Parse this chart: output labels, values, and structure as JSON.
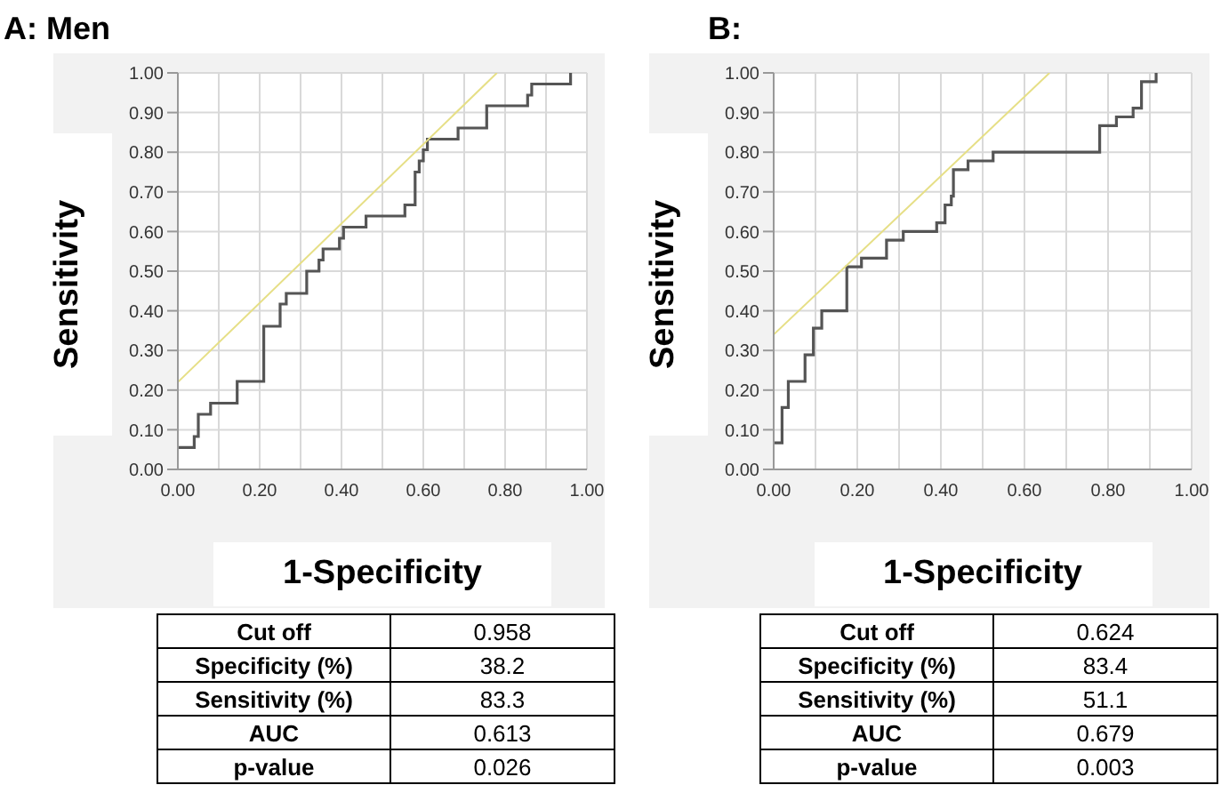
{
  "chart_data": [
    {
      "type": "step",
      "title": "A: Men",
      "xlabel": "1-Specificity",
      "ylabel": "Sensitivity",
      "xlim": [
        0,
        1
      ],
      "ylim": [
        0,
        1
      ],
      "xticks": [
        {
          "value": 0,
          "label": "0.00"
        },
        {
          "value": 0.1,
          "label": null
        },
        {
          "value": 0.2,
          "label": "0.20"
        },
        {
          "value": 0.3,
          "label": null
        },
        {
          "value": 0.4,
          "label": "0.40"
        },
        {
          "value": 0.5,
          "label": null
        },
        {
          "value": 0.6,
          "label": "0.60"
        },
        {
          "value": 0.7,
          "label": null
        },
        {
          "value": 0.8,
          "label": "0.80"
        },
        {
          "value": 0.9,
          "label": null
        },
        {
          "value": 1,
          "label": "1.00"
        }
      ],
      "yticks": [
        {
          "value": 0,
          "label": "0.00"
        },
        {
          "value": 0.1,
          "label": "0.10"
        },
        {
          "value": 0.2,
          "label": "0.20"
        },
        {
          "value": 0.3,
          "label": "0.30"
        },
        {
          "value": 0.4,
          "label": "0.40"
        },
        {
          "value": 0.5,
          "label": "0.50"
        },
        {
          "value": 0.6,
          "label": "0.60"
        },
        {
          "value": 0.7,
          "label": "0.70"
        },
        {
          "value": 0.8,
          "label": "0.80"
        },
        {
          "value": 0.9,
          "label": "0.90"
        },
        {
          "value": 1,
          "label": "1.00"
        }
      ],
      "grid": true,
      "marker": "none",
      "series": [
        {
          "type": "step",
          "color": "#555555",
          "x": [
            0,
            0.04,
            0.05,
            0.08,
            0.145,
            0.21,
            0.25,
            0.265,
            0.315,
            0.345,
            0.355,
            0.395,
            0.405,
            0.46,
            0.555,
            0.58,
            0.59,
            0.6,
            0.61,
            0.685,
            0.755,
            0.855,
            0.865,
            0.96
          ],
          "values": [
            0.055,
            0.083,
            0.139,
            0.167,
            0.222,
            0.361,
            0.417,
            0.444,
            0.5,
            0.528,
            0.556,
            0.583,
            0.611,
            0.639,
            0.667,
            0.75,
            0.778,
            0.806,
            0.833,
            0.861,
            0.917,
            0.944,
            0.972,
            1.0
          ]
        },
        {
          "type": "line",
          "color": "#e6df86",
          "x": [
            0,
            0.78
          ],
          "values": [
            0.22,
            1.0
          ]
        }
      ],
      "annotations": [
        "Cut off",
        "0.958",
        "Specificity (%)",
        "38.2",
        "Sensitivity (%)",
        "83.3",
        "AUC",
        "0.613",
        "p-value",
        "0.026"
      ]
    },
    {
      "type": "step",
      "title": "B:",
      "xlabel": "1-Specificity",
      "ylabel": "Sensitivity",
      "xlim": [
        0,
        1
      ],
      "ylim": [
        0,
        1
      ],
      "xticks": [
        {
          "value": 0,
          "label": "0.00"
        },
        {
          "value": 0.1,
          "label": null
        },
        {
          "value": 0.2,
          "label": "0.20"
        },
        {
          "value": 0.3,
          "label": null
        },
        {
          "value": 0.4,
          "label": "0.40"
        },
        {
          "value": 0.5,
          "label": null
        },
        {
          "value": 0.6,
          "label": "0.60"
        },
        {
          "value": 0.7,
          "label": null
        },
        {
          "value": 0.8,
          "label": "0.80"
        },
        {
          "value": 0.9,
          "label": null
        },
        {
          "value": 1,
          "label": "1.00"
        }
      ],
      "yticks": [
        {
          "value": 0,
          "label": "0.00"
        },
        {
          "value": 0.1,
          "label": "0.10"
        },
        {
          "value": 0.2,
          "label": "0.20"
        },
        {
          "value": 0.3,
          "label": "0.30"
        },
        {
          "value": 0.4,
          "label": "0.40"
        },
        {
          "value": 0.5,
          "label": "0.50"
        },
        {
          "value": 0.6,
          "label": "0.60"
        },
        {
          "value": 0.7,
          "label": "0.70"
        },
        {
          "value": 0.8,
          "label": "0.80"
        },
        {
          "value": 0.9,
          "label": "0.90"
        },
        {
          "value": 1,
          "label": "1.00"
        }
      ],
      "grid": true,
      "marker": "none",
      "series": [
        {
          "type": "step",
          "color": "#555555",
          "x": [
            0,
            0.02,
            0.035,
            0.075,
            0.095,
            0.115,
            0.175,
            0.21,
            0.27,
            0.31,
            0.39,
            0.41,
            0.425,
            0.43,
            0.465,
            0.525,
            0.78,
            0.82,
            0.86,
            0.88,
            0.915
          ],
          "values": [
            0.067,
            0.156,
            0.222,
            0.289,
            0.356,
            0.4,
            0.511,
            0.533,
            0.578,
            0.6,
            0.622,
            0.667,
            0.689,
            0.756,
            0.778,
            0.8,
            0.867,
            0.889,
            0.911,
            0.978,
            1.0
          ]
        },
        {
          "type": "line",
          "color": "#e6df86",
          "x": [
            0,
            0.66
          ],
          "values": [
            0.34,
            1.0
          ]
        }
      ],
      "annotations": [
        "Cut off",
        "0.624",
        "Specificity (%)",
        "83.4",
        "Sensitivity (%)",
        "51.1",
        "AUC",
        "0.679",
        "p-value",
        "0.003"
      ]
    }
  ]
}
